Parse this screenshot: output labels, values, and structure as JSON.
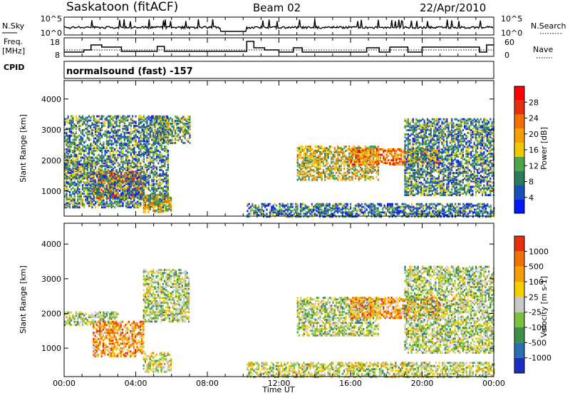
{
  "header": {
    "station": "Saskatoon (fitACF)",
    "beam": "Beam 02",
    "date": "22/Apr/2010"
  },
  "top_panels": {
    "nsky_label": "N.Sky",
    "nsky_ticks": [
      "10^5",
      "10^0"
    ],
    "nsearch_label": "N.Search",
    "nsearch_ticks": [
      "10^5",
      "10^0"
    ],
    "freq_label_1": "Freq.",
    "freq_label_2": "[MHz]",
    "freq_ticks": [
      "18",
      "8"
    ],
    "nave_label": "Nave",
    "nave_ticks": [
      "60",
      "0"
    ],
    "cpid_label": "CPID",
    "cpid_value": "normalsound (fast) -157"
  },
  "chart_data": [
    {
      "type": "heatmap",
      "name": "power-panel",
      "xlabel": "Time UT",
      "ylabel": "Slant Range [km]",
      "xlim": [
        0,
        24
      ],
      "ylim": [
        180,
        4600
      ],
      "yticks": [
        "4000",
        "3000",
        "2000",
        "1000"
      ],
      "colorbar_label": "Power [dB]",
      "colorbar_ticks": [
        "28",
        "24",
        "20",
        "16",
        "12",
        "8",
        "4"
      ],
      "colors": [
        "#0018ff",
        "#1a4fb5",
        "#2f7a5a",
        "#4fa34c",
        "#f0c800",
        "#f5a000",
        "#f07000",
        "#e53010",
        "#ff0000"
      ],
      "scatter_regions": [
        {
          "t0": 0.0,
          "t1": 1.6,
          "r0": 1450,
          "r1": 2050,
          "lvl": 0.45
        },
        {
          "t0": 1.6,
          "t1": 4.4,
          "r0": 800,
          "r1": 1700,
          "lvl": 0.85
        },
        {
          "t0": 0.0,
          "t1": 5.8,
          "r0": 500,
          "r1": 3500,
          "lvl": 0.3
        },
        {
          "t0": 4.4,
          "t1": 6.0,
          "r0": 350,
          "r1": 900,
          "lvl": 0.5
        },
        {
          "t0": 5.0,
          "t1": 7.0,
          "r0": 2600,
          "r1": 3500,
          "lvl": 0.35
        },
        {
          "t0": 10.2,
          "t1": 24.0,
          "r0": 200,
          "r1": 650,
          "lvl": 0.25
        },
        {
          "t0": 13.0,
          "t1": 17.5,
          "r0": 1400,
          "r1": 2500,
          "lvl": 0.5
        },
        {
          "t0": 16.0,
          "t1": 21.0,
          "r0": 1900,
          "r1": 2400,
          "lvl": 0.7
        },
        {
          "t0": 19.0,
          "t1": 24.0,
          "r0": 900,
          "r1": 3400,
          "lvl": 0.3
        }
      ]
    },
    {
      "type": "heatmap",
      "name": "velocity-panel",
      "xlabel": "Time UT",
      "ylabel": "Slant Range [km]",
      "xlim": [
        0,
        24
      ],
      "ylim": [
        180,
        4600
      ],
      "yticks": [
        "4000",
        "3000",
        "2000",
        "1000"
      ],
      "xticks": [
        "00:00",
        "04:00",
        "08:00",
        "12:00",
        "16:00",
        "20:00",
        "00:00"
      ],
      "colorbar_label": "Velocity [m s-1]",
      "colorbar_ticks": [
        "1000",
        "500",
        "100",
        "25",
        "-25",
        "-100",
        "-500",
        "-1000"
      ],
      "colors": [
        "#1a2fc0",
        "#2a6fb0",
        "#3d8f4a",
        "#7cc240",
        "#c8c8c8",
        "#f5d000",
        "#f5a000",
        "#f07000",
        "#e53010"
      ],
      "scatter_regions": [
        {
          "t0": 0.0,
          "t1": 3.0,
          "r0": 1700,
          "r1": 2100,
          "lvl": 0.45
        },
        {
          "t0": 1.6,
          "t1": 4.4,
          "r0": 800,
          "r1": 1800,
          "lvl": 0.75
        },
        {
          "t0": 4.4,
          "t1": 7.0,
          "r0": 1800,
          "r1": 3300,
          "lvl": 0.45
        },
        {
          "t0": 4.4,
          "t1": 6.0,
          "r0": 350,
          "r1": 900,
          "lvl": 0.55
        },
        {
          "t0": 10.2,
          "t1": 24.0,
          "r0": 200,
          "r1": 650,
          "lvl": 0.5
        },
        {
          "t0": 13.0,
          "t1": 17.5,
          "r0": 1400,
          "r1": 2500,
          "lvl": 0.45
        },
        {
          "t0": 16.0,
          "t1": 21.0,
          "r0": 1900,
          "r1": 2500,
          "lvl": 0.75
        },
        {
          "t0": 19.0,
          "t1": 24.0,
          "r0": 900,
          "r1": 3400,
          "lvl": 0.45
        }
      ]
    }
  ]
}
